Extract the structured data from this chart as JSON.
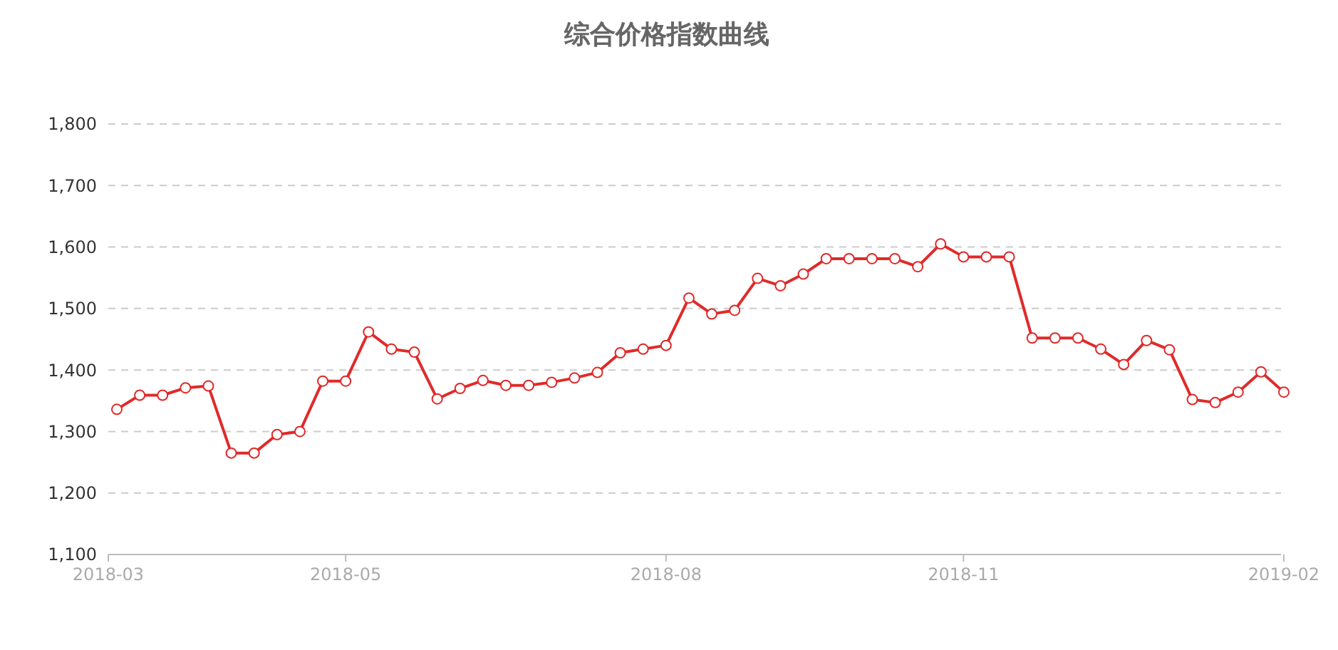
{
  "chart_data": {
    "type": "line",
    "title": "综合价格指数曲线",
    "categories": [
      "2018-03",
      null,
      null,
      null,
      null,
      null,
      null,
      null,
      null,
      null,
      "2018-05",
      null,
      null,
      null,
      null,
      null,
      null,
      null,
      null,
      null,
      null,
      null,
      null,
      null,
      "2018-08",
      null,
      null,
      null,
      null,
      null,
      null,
      null,
      null,
      null,
      null,
      null,
      null,
      "2018-11",
      null,
      null,
      null,
      null,
      null,
      null,
      null,
      null,
      null,
      null,
      null,
      null,
      null,
      "2019-02"
    ],
    "series": [
      {
        "color": "#e02a2a",
        "values": [
          1336,
          1359,
          1359,
          1371,
          1374,
          1265,
          1265,
          1295,
          1300,
          1382,
          1382,
          1462,
          1434,
          1429,
          1353,
          1370,
          1383,
          1375,
          1375,
          1380,
          1387,
          1396,
          1428,
          1434,
          1440,
          1517,
          1491,
          1497,
          1549,
          1537,
          1556,
          1581,
          1581,
          1581,
          1581,
          1568,
          1605,
          1584,
          1584,
          1584,
          1452,
          1452,
          1452,
          1434,
          1409,
          1448,
          1433,
          1352,
          1347,
          1364,
          1397,
          1364
        ]
      }
    ],
    "ylim": [
      1100,
      1800
    ],
    "yticks": [
      {
        "value": 1100,
        "label": "1,100"
      },
      {
        "value": 1200,
        "label": "1,200"
      },
      {
        "value": 1300,
        "label": "1,300"
      },
      {
        "value": 1400,
        "label": "1,400"
      },
      {
        "value": 1500,
        "label": "1,500"
      },
      {
        "value": 1600,
        "label": "1,600"
      },
      {
        "value": 1700,
        "label": "1,700"
      },
      {
        "value": 1800,
        "label": "1,800"
      }
    ],
    "grid": "y",
    "marker": "circle",
    "line_style": "solid"
  }
}
